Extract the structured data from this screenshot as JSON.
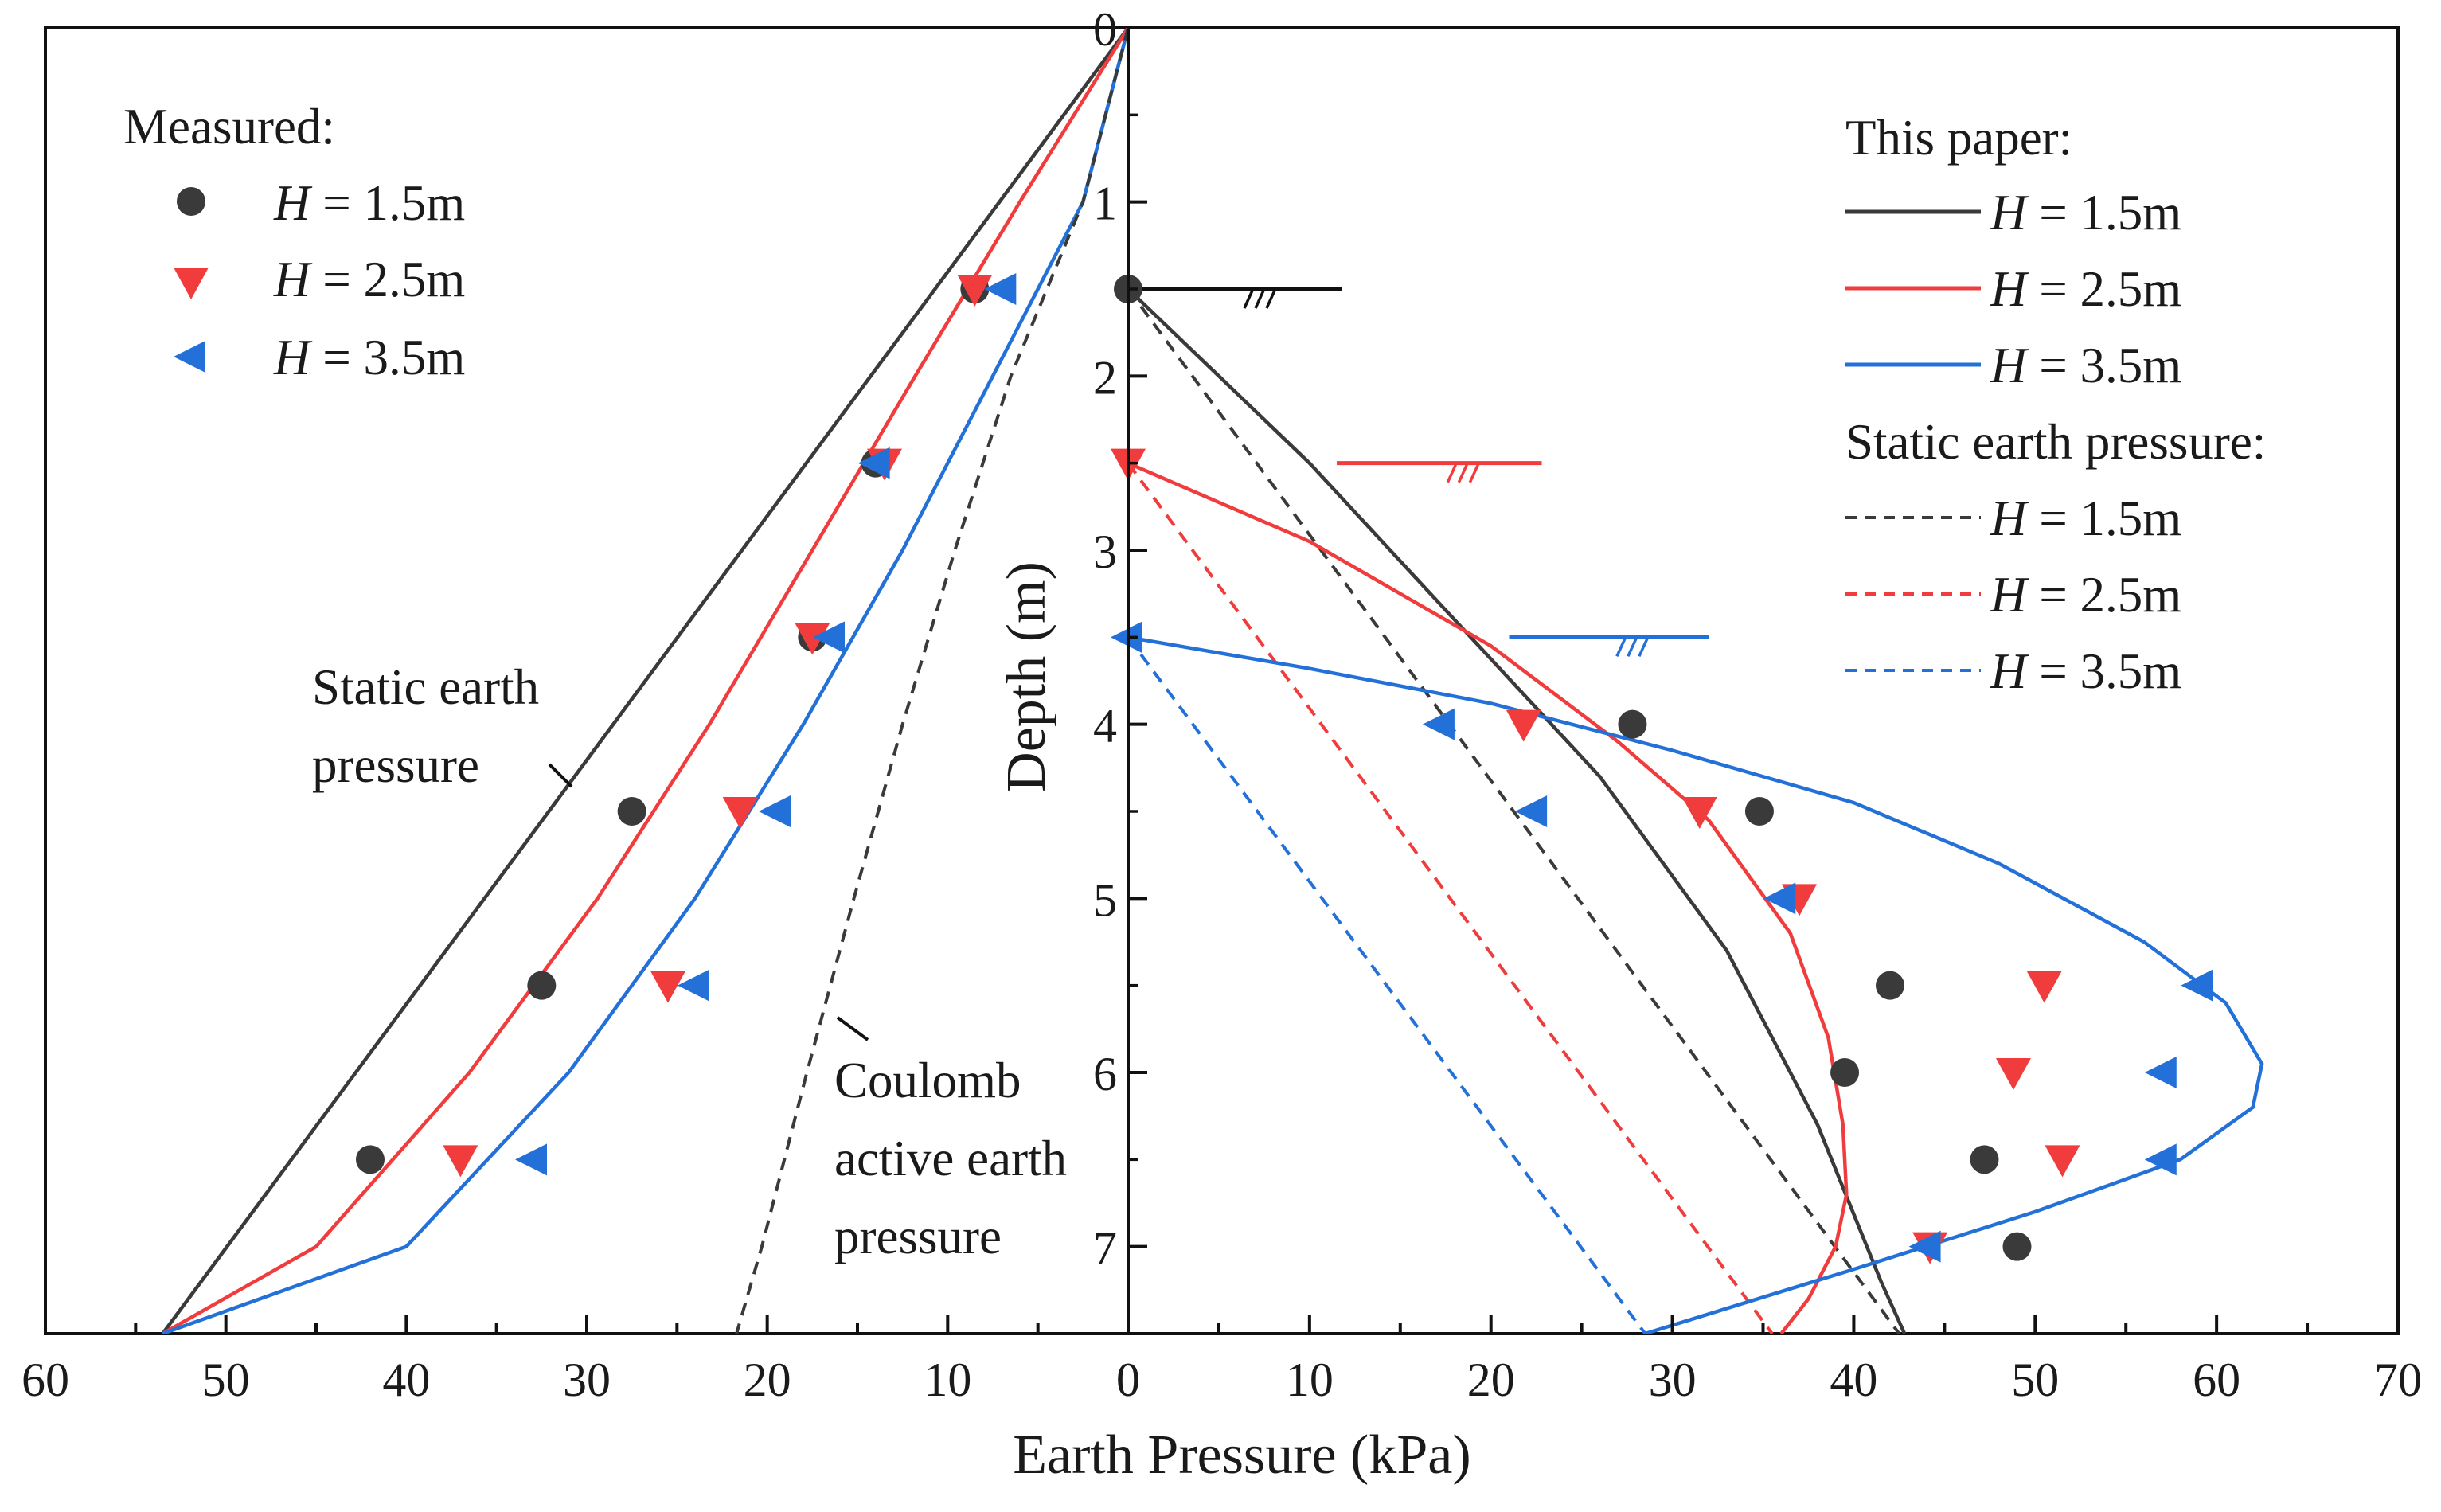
{
  "chart_data": {
    "type": "scatter",
    "xlabel": "Earth Pressure (kPa)",
    "ylabel": "Depth (m)",
    "x_ticks_left": [
      60,
      50,
      40,
      30,
      20,
      10,
      0
    ],
    "x_ticks_right": [
      0,
      10,
      20,
      30,
      40,
      50,
      60,
      70
    ],
    "y_ticks": [
      0,
      1,
      2,
      3,
      4,
      5,
      6,
      7
    ],
    "x_range_left": [
      60,
      0
    ],
    "x_range_right": [
      0,
      70
    ],
    "y_range": [
      0,
      7.5
    ],
    "legend_left": {
      "title": "Measured:",
      "entries": [
        {
          "label": "H = 1.5m",
          "marker": "circle",
          "color": "#3a3a3a"
        },
        {
          "label": "H = 2.5m",
          "marker": "triangle-down",
          "color": "#f03c3c"
        },
        {
          "label": "H = 3.5m",
          "marker": "triangle-left",
          "color": "#2371d8"
        }
      ]
    },
    "legend_right": {
      "title1": "This paper:",
      "lines": [
        {
          "label": "H = 1.5m",
          "color": "#3a3a3a"
        },
        {
          "label": "H = 2.5m",
          "color": "#f03c3c"
        },
        {
          "label": "H = 3.5m",
          "color": "#2371d8"
        }
      ],
      "title2": "Static earth pressure:",
      "dashed": [
        {
          "label": "H = 1.5m",
          "color": "#3a3a3a"
        },
        {
          "label": "H = 2.5m",
          "color": "#f03c3c"
        },
        {
          "label": "H = 3.5m",
          "color": "#2371d8"
        }
      ]
    },
    "annotations": {
      "static_left": [
        "Static earth",
        "pressure"
      ],
      "coulomb": [
        "Coulomb",
        "active earth",
        "pressure"
      ]
    },
    "left_panel": {
      "measured": [
        {
          "name": "H = 1.5m",
          "color": "#3a3a3a",
          "marker": "circle",
          "points": [
            [
              8.5,
              1.5
            ],
            [
              14.0,
              2.5
            ],
            [
              17.5,
              3.5
            ],
            [
              27.5,
              4.5
            ],
            [
              32.5,
              5.5
            ],
            [
              42.0,
              6.5
            ]
          ]
        },
        {
          "name": "H = 2.5m",
          "color": "#f03c3c",
          "marker": "triangle-down",
          "points": [
            [
              8.5,
              1.5
            ],
            [
              13.5,
              2.5
            ],
            [
              17.5,
              3.5
            ],
            [
              21.5,
              4.5
            ],
            [
              25.5,
              5.5
            ],
            [
              37.0,
              6.5
            ]
          ]
        },
        {
          "name": "H = 3.5m",
          "color": "#2371d8",
          "marker": "triangle-left",
          "points": [
            [
              7.0,
              1.5
            ],
            [
              14.0,
              2.5
            ],
            [
              16.5,
              3.5
            ],
            [
              19.5,
              4.5
            ],
            [
              24.0,
              5.5
            ],
            [
              33.0,
              6.5
            ]
          ]
        }
      ],
      "curves": [
        {
          "name": "Static earth pressure",
          "color": "#a0555a",
          "style": "dashed",
          "points": [
            [
              0,
              0
            ],
            [
              53.5,
              7.5
            ]
          ]
        },
        {
          "name": "H = 1.5m",
          "color": "#3a3a3a",
          "style": "solid",
          "points": [
            [
              0,
              0
            ],
            [
              53.5,
              7.5
            ]
          ]
        },
        {
          "name": "H = 2.5m",
          "color": "#f03c3c",
          "style": "solid",
          "points": [
            [
              0,
              0
            ],
            [
              6,
              1
            ],
            [
              11.8,
              2
            ],
            [
              17.5,
              3
            ],
            [
              23.2,
              4
            ],
            [
              29.4,
              5
            ],
            [
              36.5,
              6
            ],
            [
              45,
              7
            ],
            [
              53.5,
              7.5
            ]
          ]
        },
        {
          "name": "H = 3.5m",
          "color": "#2371d8",
          "style": "solid",
          "points": [
            [
              0,
              0
            ],
            [
              2.5,
              1
            ],
            [
              7.5,
              2
            ],
            [
              12.5,
              3
            ],
            [
              18,
              4
            ],
            [
              24,
              5
            ],
            [
              31,
              6
            ],
            [
              40,
              7
            ],
            [
              53.5,
              7.5
            ]
          ]
        },
        {
          "name": "Coulomb active earth pressure",
          "color": "#3a3a3a",
          "style": "dashed",
          "points": [
            [
              0,
              0
            ],
            [
              2.5,
              1
            ],
            [
              6.5,
              2
            ],
            [
              9.6,
              3
            ],
            [
              12.5,
              4
            ],
            [
              15.2,
              5
            ],
            [
              17.8,
              6
            ],
            [
              20.3,
              7
            ],
            [
              21.7,
              7.5
            ]
          ]
        }
      ]
    },
    "right_panel": {
      "ground_levels": [
        {
          "name": "H = 1.5m",
          "depth": 1.5,
          "x_start": 0,
          "x_end": 11.8,
          "color": "#111111"
        },
        {
          "name": "H = 2.5m",
          "depth": 2.5,
          "x_start": 11.5,
          "x_end": 22.8,
          "color": "#f03c3c"
        },
        {
          "name": "H = 3.5m",
          "depth": 3.5,
          "x_start": 21.0,
          "x_end": 32.0,
          "color": "#2371d8"
        }
      ],
      "measured": [
        {
          "name": "H = 1.5m",
          "color": "#3a3a3a",
          "marker": "circle",
          "points": [
            [
              0,
              1.5
            ],
            [
              27.8,
              4.0
            ],
            [
              34.8,
              4.5
            ],
            [
              42.0,
              5.5
            ],
            [
              39.5,
              6.0
            ],
            [
              47.2,
              6.5
            ],
            [
              49.0,
              7.0
            ]
          ]
        },
        {
          "name": "H = 2.5m",
          "color": "#f03c3c",
          "marker": "triangle-down",
          "points": [
            [
              0,
              2.5
            ],
            [
              21.8,
              4.0
            ],
            [
              31.5,
              4.5
            ],
            [
              37.0,
              5.0
            ],
            [
              50.5,
              5.5
            ],
            [
              48.8,
              6.0
            ],
            [
              51.5,
              6.5
            ],
            [
              44.2,
              7.0
            ]
          ]
        },
        {
          "name": "H = 3.5m",
          "color": "#2371d8",
          "marker": "triangle-left",
          "points": [
            [
              0,
              3.5
            ],
            [
              17.2,
              4.0
            ],
            [
              22.3,
              4.5
            ],
            [
              36.0,
              5.0
            ],
            [
              59.0,
              5.5
            ],
            [
              57.0,
              6.0
            ],
            [
              57.0,
              6.5
            ],
            [
              44.0,
              7.0
            ]
          ]
        }
      ],
      "this_paper": [
        {
          "name": "H = 1.5m",
          "color": "#3a3a3a",
          "points": [
            [
              0,
              1.5
            ],
            [
              10,
              2.5
            ],
            [
              18,
              3.4
            ],
            [
              26,
              4.3
            ],
            [
              33,
              5.3
            ],
            [
              38,
              6.3
            ],
            [
              41.5,
              7.2
            ],
            [
              42.8,
              7.5
            ]
          ]
        },
        {
          "name": "H = 2.5m",
          "color": "#f03c3c",
          "points": [
            [
              0,
              2.5
            ],
            [
              10,
              2.95
            ],
            [
              20,
              3.55
            ],
            [
              27,
              4.1
            ],
            [
              32,
              4.55
            ],
            [
              36.5,
              5.2
            ],
            [
              38.6,
              5.8
            ],
            [
              39.4,
              6.3
            ],
            [
              39.6,
              6.7
            ],
            [
              39,
              7.0
            ],
            [
              37.5,
              7.3
            ],
            [
              36,
              7.5
            ]
          ]
        },
        {
          "name": "H = 3.5m",
          "color": "#2371d8",
          "points": [
            [
              0,
              3.5
            ],
            [
              10,
              3.68
            ],
            [
              20,
              3.88
            ],
            [
              30,
              4.15
            ],
            [
              40,
              4.45
            ],
            [
              48,
              4.8
            ],
            [
              56,
              5.25
            ],
            [
              60.5,
              5.6
            ],
            [
              62.5,
              5.95
            ],
            [
              62,
              6.2
            ],
            [
              58,
              6.5
            ],
            [
              50,
              6.8
            ],
            [
              40,
              7.13
            ],
            [
              28.5,
              7.5
            ]
          ]
        }
      ],
      "static": [
        {
          "name": "H = 1.5m",
          "color": "#3a3a3a",
          "points": [
            [
              0,
              1.5
            ],
            [
              42.5,
              7.5
            ]
          ]
        },
        {
          "name": "H = 2.5m",
          "color": "#f03c3c",
          "points": [
            [
              0,
              2.5
            ],
            [
              35.5,
              7.5
            ]
          ]
        },
        {
          "name": "H = 3.5m",
          "color": "#2371d8",
          "points": [
            [
              0,
              3.5
            ],
            [
              28.5,
              7.5
            ]
          ]
        }
      ]
    }
  }
}
